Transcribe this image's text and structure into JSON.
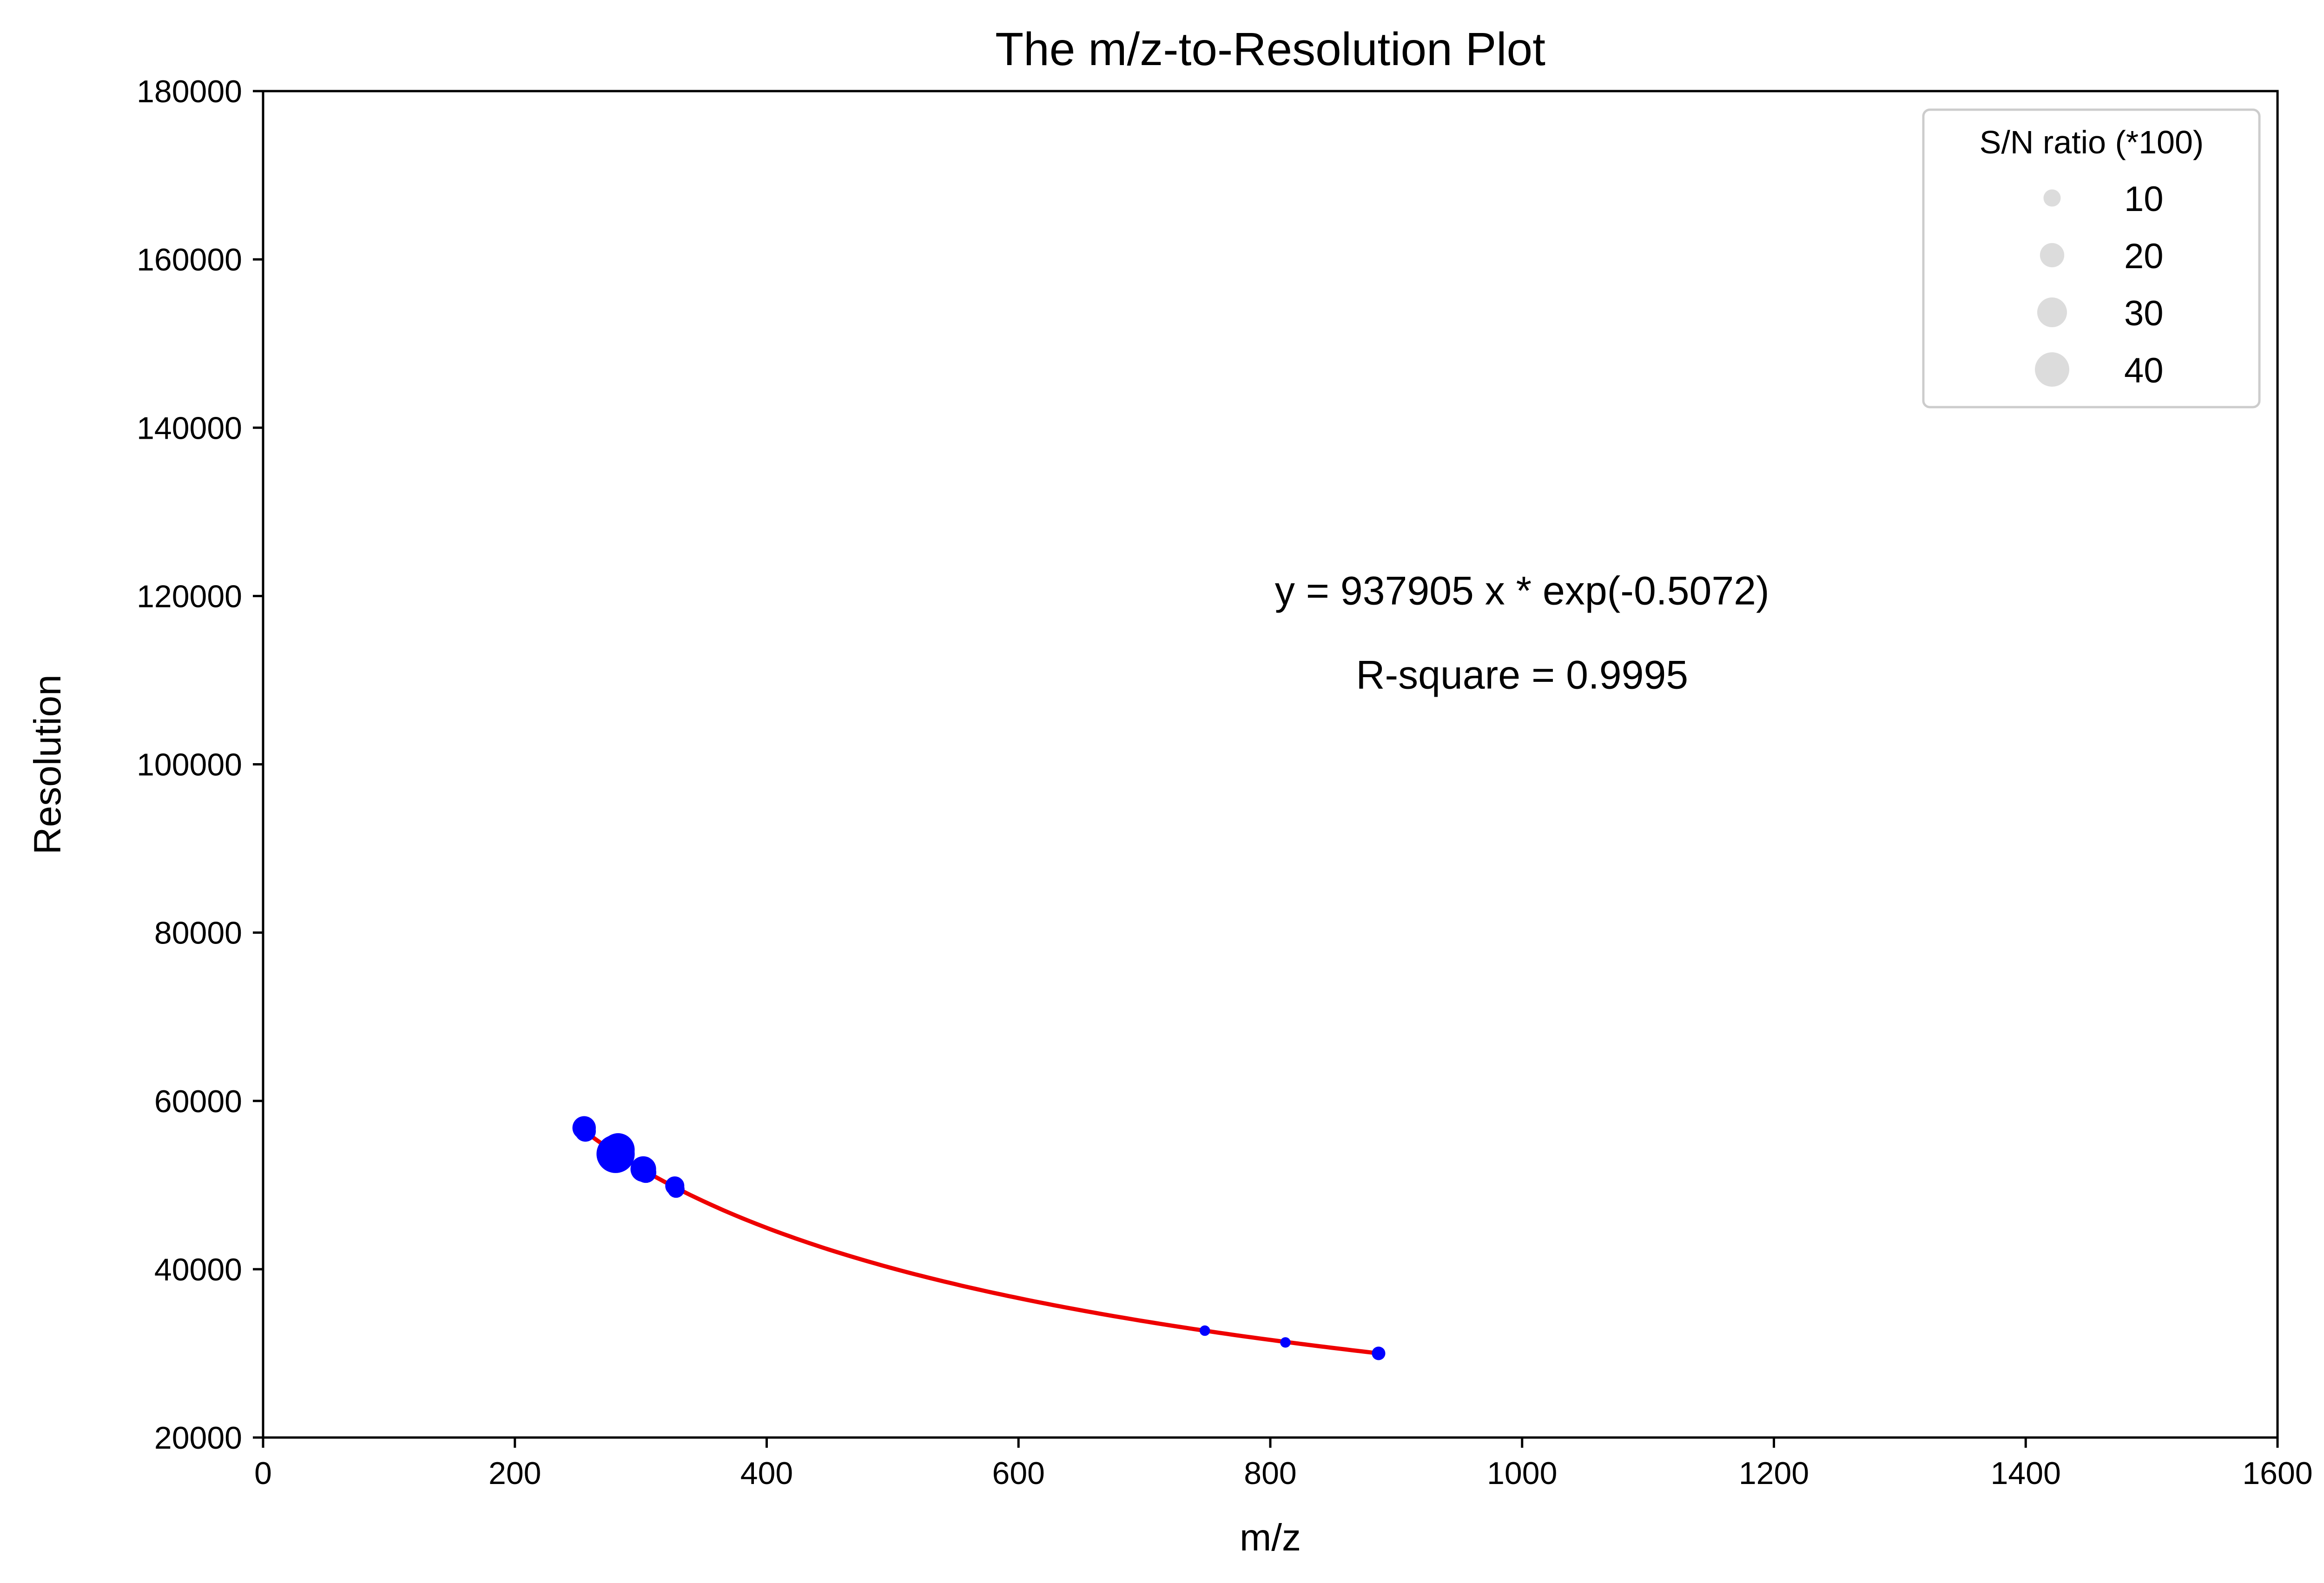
{
  "chart_data": {
    "type": "scatter",
    "title": "The m/z-to-Resolution Plot",
    "xlabel": "m/z",
    "ylabel": "Resolution",
    "xlim": [
      0,
      1600
    ],
    "ylim": [
      20000,
      180000
    ],
    "xticks": [
      "0",
      "200",
      "400",
      "600",
      "800",
      "1000",
      "1200",
      "1400",
      "1600"
    ],
    "yticks": [
      "20000",
      "40000",
      "60000",
      "80000",
      "100000",
      "120000",
      "140000",
      "160000",
      "180000"
    ],
    "grid": false,
    "colors": {
      "points": "#0000ff",
      "fit": "#ee0000",
      "legend_marker": "#dcdcdc"
    },
    "series": [
      {
        "kind": "scatter",
        "x": [
          255,
          256,
          280,
          282,
          302,
          304,
          327,
          328,
          748,
          812,
          886
        ],
        "y": [
          56800,
          56400,
          53700,
          54200,
          51900,
          51500,
          49900,
          49500,
          32700,
          31300,
          30000
        ],
        "sn": [
          15,
          12,
          40,
          30,
          18,
          12,
          10,
          8,
          3,
          3,
          5
        ]
      },
      {
        "kind": "fit-line",
        "formula": {
          "a": 937905,
          "b": -0.5072
        },
        "x_range": [
          255,
          886
        ]
      }
    ],
    "annotations": [
      {
        "text": "y = 937905 x * exp(-0.5072)",
        "x": 1000,
        "y": 119000
      },
      {
        "text": "R-square = 0.9995",
        "x": 1000,
        "y": 109000
      }
    ],
    "legend": {
      "title": "S/N ratio (*100)",
      "position": "top-right",
      "entries": [
        {
          "label": "10",
          "size": 10
        },
        {
          "label": "20",
          "size": 20
        },
        {
          "label": "30",
          "size": 30
        },
        {
          "label": "40",
          "size": 40
        }
      ]
    }
  }
}
